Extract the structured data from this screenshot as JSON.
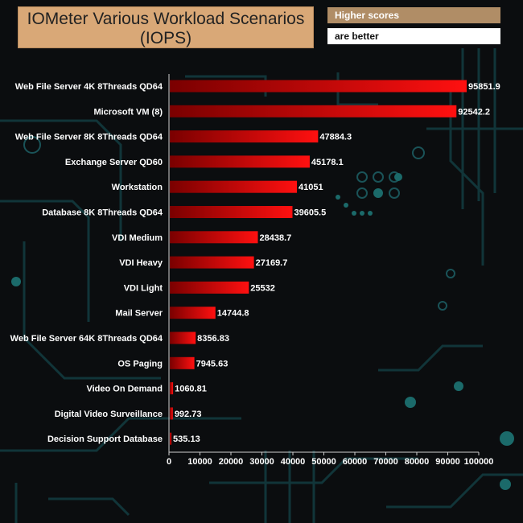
{
  "chart_data": {
    "type": "bar",
    "orientation": "horizontal",
    "title": "IOMeter Various Workload Scenarios (IOPS)",
    "legend": [
      "Higher scores",
      "are better"
    ],
    "categories": [
      "Web File Server 4K 8Threads QD64",
      "Microsoft VM (8)\u0001",
      "Web File Server 8K 8Threads QD64",
      "Exchange Server QD60",
      "Workstation",
      "Database 8K 8Threads QD64",
      "VDI Medium",
      "VDI Heavy",
      "VDI Light",
      "Mail Server",
      "Web File Server 64K 8Threads QD64",
      "OS Paging",
      "Video On Demand",
      "Digital Video Surveillance",
      "Decision Support Database"
    ],
    "values": [
      95851.9,
      92542.2,
      47884.3,
      45178.1,
      41051,
      39605.5,
      28438.7,
      27169.7,
      25532,
      14744.8,
      8356.83,
      7945.63,
      1060.81,
      992.73,
      535.13
    ],
    "value_labels": [
      "95851.9",
      "92542.2",
      "47884.3",
      "45178.1",
      "41051",
      "39605.5",
      "28438.7",
      "27169.7",
      "25532",
      "14744.8",
      "8356.83",
      "7945.63",
      "1060.81",
      "992.73",
      "535.13"
    ],
    "xlim": [
      0,
      100000
    ],
    "xticks": [
      0,
      10000,
      20000,
      30000,
      40000,
      50000,
      60000,
      70000,
      80000,
      90000,
      100000
    ],
    "grid": false,
    "bar_color_start": "#7a0000",
    "bar_color_end": "#ff1010"
  },
  "header": {
    "title": "IOMeter Various Workload Scenarios (IOPS)",
    "note_top": "Higher scores",
    "note_bottom": "are better"
  },
  "colors": {
    "background": "#0b0d0f",
    "circuit": "#123438",
    "title_box": "#d9a877",
    "note_box": "#b08d66"
  }
}
